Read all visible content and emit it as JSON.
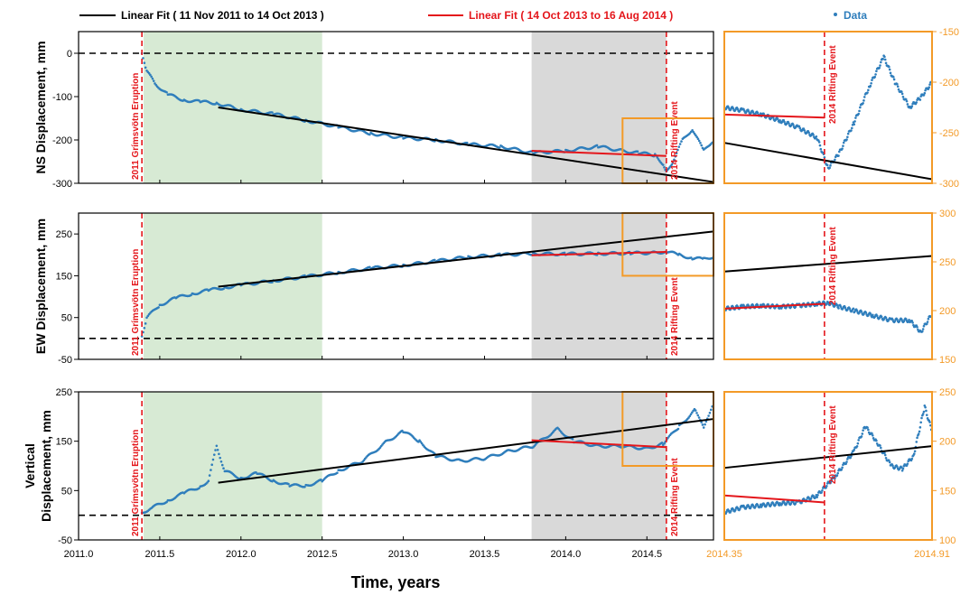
{
  "legend": {
    "black_label": "Linear Fit ( 11 Nov 2011 to 14 Oct 2013 )",
    "red_label": "Linear Fit ( 14 Oct 2013 to 16 Aug 2014 )",
    "data_label": "Data"
  },
  "xlabel": "Time, years",
  "x_ticks": [
    "2011.0",
    "2011.5",
    "2012.0",
    "2012.5",
    "2013.0",
    "2013.5",
    "2014.0",
    "2014.5"
  ],
  "inset_x_ticks": [
    "2014.35",
    "2014.91"
  ],
  "annotations": {
    "eruption": "2011 Grímsvötn Eruption",
    "rifting": "2014 Rifting Event"
  },
  "colors": {
    "data": "#2f7ebc",
    "fit_black": "#000000",
    "fit_red": "#e4161b",
    "green_shade": "#d7ead4",
    "gray_shade": "#d9d9d9",
    "inset_accent": "#f39a27"
  },
  "chart_data": [
    {
      "type": "scatter",
      "panel": "NS",
      "ylabel": "NS Displacement, mm",
      "xlim": [
        2011.0,
        2014.91
      ],
      "ylim": [
        -300,
        50
      ],
      "yticks": [
        "0",
        "-100",
        "-200",
        "-300"
      ],
      "inset_ylim": [
        -300,
        -150
      ],
      "inset_yticks": [
        "-150",
        "-200",
        "-250",
        "-300"
      ],
      "inset_xlim": [
        2014.35,
        2014.91
      ],
      "zero_line": 0,
      "shaded": [
        {
          "from": 2011.4,
          "to": 2012.5,
          "color": "green"
        },
        {
          "from": 2013.79,
          "to": 2014.62,
          "color": "gray"
        }
      ],
      "events": {
        "eruption": 2011.39,
        "rifting": 2014.62
      },
      "data_points": [
        [
          2011.39,
          0
        ],
        [
          2011.42,
          -40
        ],
        [
          2011.47,
          -70
        ],
        [
          2011.55,
          -95
        ],
        [
          2011.65,
          -108
        ],
        [
          2011.75,
          -112
        ],
        [
          2011.85,
          -115
        ],
        [
          2011.9,
          -120
        ],
        [
          2012.0,
          -130
        ],
        [
          2012.2,
          -140
        ],
        [
          2012.4,
          -155
        ],
        [
          2012.6,
          -170
        ],
        [
          2012.8,
          -185
        ],
        [
          2013.0,
          -195
        ],
        [
          2013.2,
          -200
        ],
        [
          2013.4,
          -210
        ],
        [
          2013.6,
          -215
        ],
        [
          2013.8,
          -230
        ],
        [
          2014.0,
          -225
        ],
        [
          2014.2,
          -215
        ],
        [
          2014.35,
          -225
        ],
        [
          2014.45,
          -230
        ],
        [
          2014.55,
          -235
        ],
        [
          2014.6,
          -255
        ],
        [
          2014.62,
          -275
        ],
        [
          2014.66,
          -250
        ],
        [
          2014.72,
          -200
        ],
        [
          2014.78,
          -175
        ],
        [
          2014.85,
          -225
        ],
        [
          2014.91,
          -200
        ]
      ],
      "fit_black": {
        "x": [
          2011.86,
          2014.91
        ],
        "y": [
          -125,
          -297
        ]
      },
      "fit_red": {
        "x": [
          2013.79,
          2014.62
        ],
        "y": [
          -225,
          -237
        ]
      },
      "inset_points": [
        [
          2014.35,
          -225
        ],
        [
          2014.4,
          -228
        ],
        [
          2014.45,
          -232
        ],
        [
          2014.5,
          -238
        ],
        [
          2014.55,
          -245
        ],
        [
          2014.6,
          -255
        ],
        [
          2014.63,
          -285
        ],
        [
          2014.66,
          -270
        ],
        [
          2014.7,
          -240
        ],
        [
          2014.74,
          -205
        ],
        [
          2014.78,
          -175
        ],
        [
          2014.81,
          -200
        ],
        [
          2014.85,
          -225
        ],
        [
          2014.88,
          -215
        ],
        [
          2014.91,
          -200
        ]
      ],
      "inset_fit_black": {
        "x": [
          2014.35,
          2014.91
        ],
        "y": [
          -260,
          -296
        ]
      },
      "inset_fit_red": {
        "x": [
          2014.35,
          2014.62
        ],
        "y": [
          -232,
          -235
        ]
      }
    },
    {
      "type": "scatter",
      "panel": "EW",
      "ylabel": "EW Displacement, mm",
      "xlim": [
        2011.0,
        2014.91
      ],
      "ylim": [
        -50,
        300
      ],
      "yticks": [
        "250",
        "150",
        "50",
        "-50"
      ],
      "inset_ylim": [
        150,
        300
      ],
      "inset_yticks": [
        "300",
        "250",
        "200",
        "150"
      ],
      "inset_xlim": [
        2014.35,
        2014.91
      ],
      "zero_line": 0,
      "shaded": [
        {
          "from": 2011.4,
          "to": 2012.5,
          "color": "green"
        },
        {
          "from": 2013.79,
          "to": 2014.62,
          "color": "gray"
        }
      ],
      "events": {
        "eruption": 2011.39,
        "rifting": 2014.62
      },
      "data_points": [
        [
          2011.39,
          5
        ],
        [
          2011.42,
          50
        ],
        [
          2011.5,
          80
        ],
        [
          2011.6,
          97
        ],
        [
          2011.7,
          107
        ],
        [
          2011.8,
          115
        ],
        [
          2011.9,
          122
        ],
        [
          2012.0,
          128
        ],
        [
          2012.2,
          138
        ],
        [
          2012.4,
          148
        ],
        [
          2012.6,
          158
        ],
        [
          2012.8,
          168
        ],
        [
          2013.0,
          175
        ],
        [
          2013.2,
          185
        ],
        [
          2013.4,
          195
        ],
        [
          2013.6,
          200
        ],
        [
          2013.8,
          203
        ],
        [
          2014.0,
          202
        ],
        [
          2014.2,
          203
        ],
        [
          2014.4,
          204
        ],
        [
          2014.55,
          205
        ],
        [
          2014.62,
          208
        ],
        [
          2014.7,
          200
        ],
        [
          2014.78,
          192
        ],
        [
          2014.85,
          190
        ],
        [
          2014.91,
          196
        ]
      ],
      "fit_black": {
        "x": [
          2011.86,
          2014.91
        ],
        "y": [
          124,
          256
        ]
      },
      "fit_red": {
        "x": [
          2013.79,
          2014.62
        ],
        "y": [
          199,
          207
        ]
      },
      "inset_points": [
        [
          2014.35,
          202
        ],
        [
          2014.4,
          204
        ],
        [
          2014.45,
          205
        ],
        [
          2014.5,
          204
        ],
        [
          2014.55,
          205
        ],
        [
          2014.6,
          207
        ],
        [
          2014.63,
          208
        ],
        [
          2014.66,
          204
        ],
        [
          2014.7,
          200
        ],
        [
          2014.75,
          195
        ],
        [
          2014.8,
          190
        ],
        [
          2014.85,
          190
        ],
        [
          2014.88,
          178
        ],
        [
          2014.91,
          197
        ]
      ],
      "inset_fit_black": {
        "x": [
          2014.35,
          2014.91
        ],
        "y": [
          240,
          256
        ]
      },
      "inset_fit_red": {
        "x": [
          2014.35,
          2014.62
        ],
        "y": [
          202,
          207
        ]
      }
    },
    {
      "type": "scatter",
      "panel": "Vertical",
      "ylabel": "Vertical Displacement, mm",
      "xlim": [
        2011.0,
        2014.91
      ],
      "ylim": [
        -50,
        250
      ],
      "yticks": [
        "250",
        "150",
        "50",
        "-50"
      ],
      "inset_ylim": [
        100,
        250
      ],
      "inset_yticks": [
        "250",
        "200",
        "150",
        "100"
      ],
      "inset_xlim": [
        2014.35,
        2014.91
      ],
      "zero_line": 0,
      "shaded": [
        {
          "from": 2011.4,
          "to": 2012.5,
          "color": "green"
        },
        {
          "from": 2013.79,
          "to": 2014.62,
          "color": "gray"
        }
      ],
      "events": {
        "eruption": 2011.39,
        "rifting": 2014.62
      },
      "data_points": [
        [
          2011.39,
          5
        ],
        [
          2011.45,
          15
        ],
        [
          2011.55,
          30
        ],
        [
          2011.65,
          45
        ],
        [
          2011.75,
          58
        ],
        [
          2011.8,
          70
        ],
        [
          2011.85,
          140
        ],
        [
          2011.9,
          90
        ],
        [
          2012.0,
          75
        ],
        [
          2012.1,
          85
        ],
        [
          2012.2,
          70
        ],
        [
          2012.3,
          60
        ],
        [
          2012.4,
          60
        ],
        [
          2012.5,
          70
        ],
        [
          2012.6,
          90
        ],
        [
          2012.75,
          110
        ],
        [
          2012.9,
          150
        ],
        [
          2013.0,
          170
        ],
        [
          2013.1,
          150
        ],
        [
          2013.2,
          120
        ],
        [
          2013.35,
          110
        ],
        [
          2013.5,
          115
        ],
        [
          2013.65,
          130
        ],
        [
          2013.8,
          140
        ],
        [
          2013.95,
          175
        ],
        [
          2014.05,
          150
        ],
        [
          2014.2,
          140
        ],
        [
          2014.35,
          140
        ],
        [
          2014.5,
          135
        ],
        [
          2014.6,
          145
        ],
        [
          2014.7,
          180
        ],
        [
          2014.8,
          215
        ],
        [
          2014.85,
          175
        ],
        [
          2014.91,
          230
        ]
      ],
      "fit_black": {
        "x": [
          2011.86,
          2014.91
        ],
        "y": [
          66,
          195
        ]
      },
      "fit_red": {
        "x": [
          2013.79,
          2014.62
        ],
        "y": [
          152,
          138
        ]
      },
      "inset_points": [
        [
          2014.35,
          128
        ],
        [
          2014.4,
          133
        ],
        [
          2014.45,
          135
        ],
        [
          2014.5,
          137
        ],
        [
          2014.55,
          138
        ],
        [
          2014.6,
          145
        ],
        [
          2014.65,
          165
        ],
        [
          2014.7,
          190
        ],
        [
          2014.73,
          215
        ],
        [
          2014.76,
          200
        ],
        [
          2014.8,
          175
        ],
        [
          2014.83,
          172
        ],
        [
          2014.86,
          185
        ],
        [
          2014.89,
          235
        ],
        [
          2014.91,
          210
        ]
      ],
      "inset_fit_black": {
        "x": [
          2014.35,
          2014.91
        ],
        "y": [
          173,
          195
        ]
      },
      "inset_fit_red": {
        "x": [
          2014.35,
          2014.62
        ],
        "y": [
          145,
          138
        ]
      }
    }
  ]
}
